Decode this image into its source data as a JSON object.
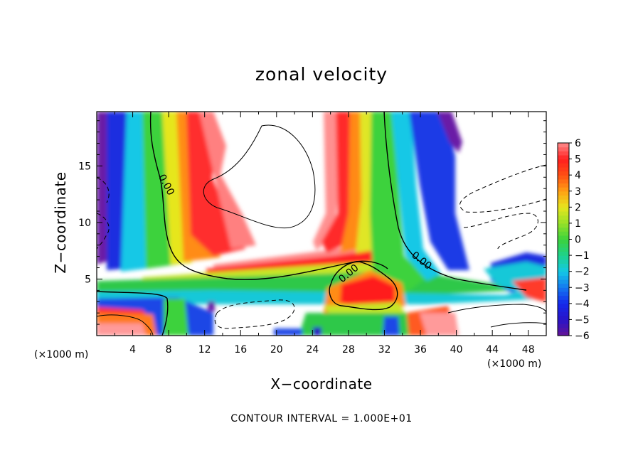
{
  "chart_data": {
    "type": "heatmap",
    "title": "zonal velocity",
    "xlabel": "X−coordinate",
    "ylabel": "Z−coordinate",
    "x_unit_left": "(×1000 m)",
    "x_unit_right": "(×1000 m)",
    "xlim": [
      0,
      50
    ],
    "ylim": [
      0,
      19.8
    ],
    "x_ticks": [
      4,
      8,
      12,
      16,
      20,
      24,
      28,
      32,
      36,
      40,
      44,
      48
    ],
    "y_ticks": [
      5,
      10,
      15
    ],
    "colorbar": {
      "range": [
        -6,
        6
      ],
      "ticks": [
        6,
        5,
        4,
        3,
        2,
        1,
        0,
        -1,
        -2,
        -3,
        -4,
        -5,
        -6
      ]
    },
    "contour_labels": [
      "0.00",
      "0.00",
      "0.00",
      "0.00"
    ],
    "footer": "CONTOUR INTERVAL = 1.000E+01"
  }
}
